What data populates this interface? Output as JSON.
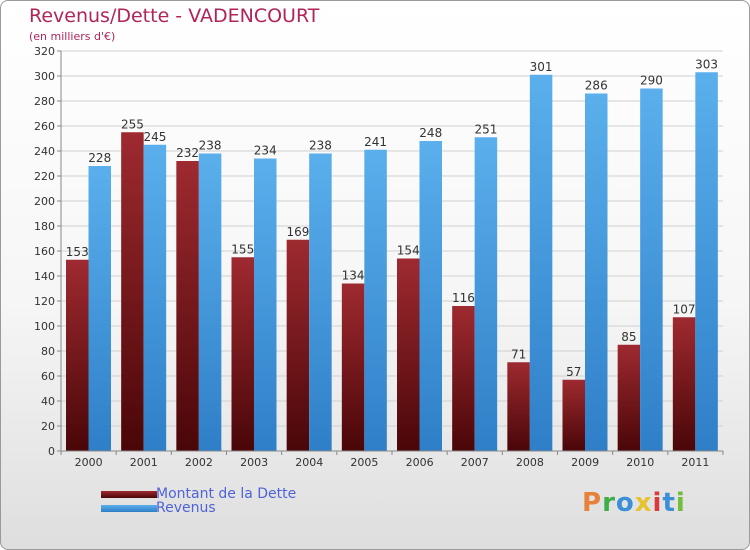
{
  "header": {
    "title": "Revenus/Dette - VADENCOURT",
    "subtitle": "(en milliers d'€)"
  },
  "legend": {
    "items": [
      {
        "label": "Montant de la Dette",
        "color": "#7a1a1e"
      },
      {
        "label": "Revenus",
        "color": "#4aa3e6"
      }
    ]
  },
  "logo": {
    "text": "Proxiti",
    "letters": [
      {
        "ch": "P",
        "color": "#e8823a"
      },
      {
        "ch": "r",
        "color": "#3fae4a"
      },
      {
        "ch": "o",
        "color": "#3a8fd6"
      },
      {
        "ch": "x",
        "color": "#e8c22e"
      },
      {
        "ch": "i",
        "color": "#d93a3a"
      },
      {
        "ch": "t",
        "color": "#3a8fd6"
      },
      {
        "ch": "i",
        "color": "#6fbf3a"
      }
    ]
  },
  "chart_data": {
    "type": "bar",
    "title": "Revenus/Dette - VADENCOURT",
    "subtitle": "(en milliers d'€)",
    "categories": [
      "2000",
      "2001",
      "2002",
      "2003",
      "2004",
      "2005",
      "2006",
      "2007",
      "2008",
      "2009",
      "2010",
      "2011"
    ],
    "series": [
      {
        "name": "Montant de la Dette",
        "values": [
          153,
          255,
          232,
          155,
          169,
          134,
          154,
          116,
          71,
          57,
          85,
          107
        ],
        "color": "#7a1a1e"
      },
      {
        "name": "Revenus",
        "values": [
          228,
          245,
          238,
          234,
          238,
          241,
          248,
          251,
          301,
          286,
          290,
          303
        ],
        "color": "#4aa3e6"
      }
    ],
    "ylim": [
      0,
      320
    ],
    "yticks": [
      0,
      20,
      40,
      60,
      80,
      100,
      120,
      140,
      160,
      180,
      200,
      220,
      240,
      260,
      280,
      300,
      320
    ],
    "grid": true,
    "legend_position": "bottom-left"
  }
}
